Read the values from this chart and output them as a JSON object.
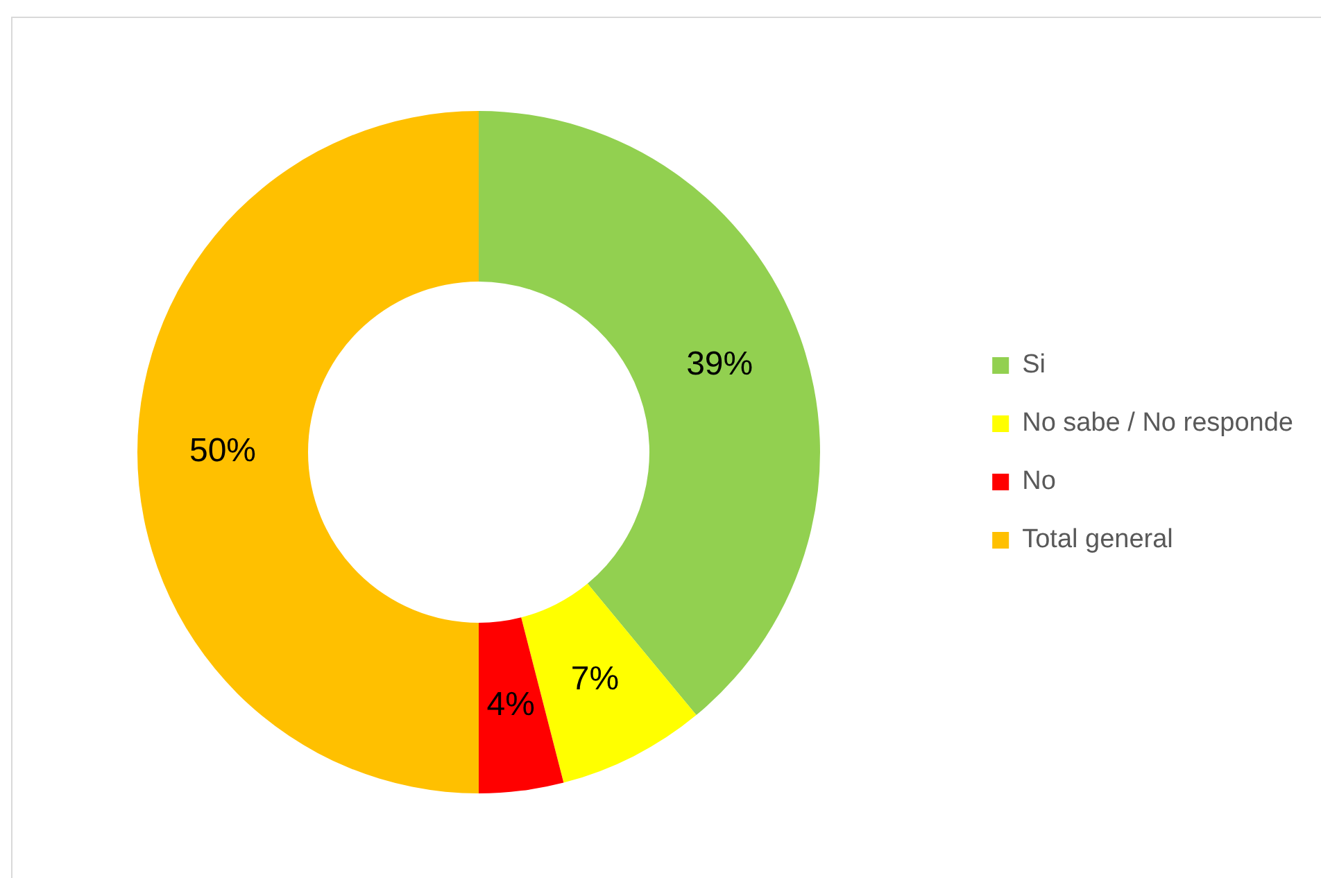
{
  "chart_data": {
    "type": "donut",
    "categories": [
      "Si",
      "No sabe / No responde",
      "No",
      "Total general"
    ],
    "values": [
      39,
      7,
      4,
      50
    ],
    "colors": [
      "#92d050",
      "#ffff00",
      "#ff0000",
      "#ffc000"
    ],
    "value_labels": [
      "39%",
      "7%",
      "4%",
      "50%"
    ],
    "legend": "right"
  }
}
